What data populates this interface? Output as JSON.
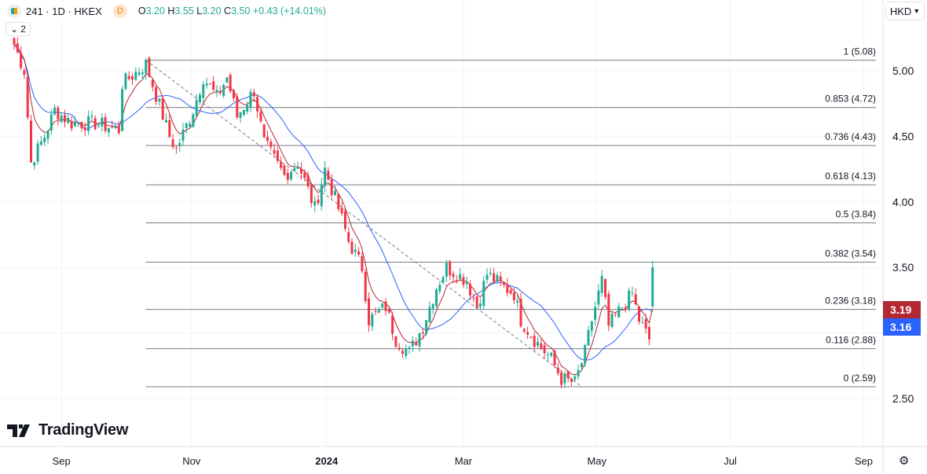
{
  "header": {
    "symbol": "241 · 1D · HKEX",
    "interval_badge": "D",
    "open": "3.20",
    "high": "3.55",
    "low": "3.20",
    "close": "3.50",
    "change": "+0.43 (+14.01%)",
    "o_label": "O",
    "h_label": "H",
    "l_label": "L",
    "c_label": "C",
    "collapsed_count": "2"
  },
  "currency": "HKD",
  "brand": "TradingView",
  "colors": {
    "up": "#22ab94",
    "down": "#f23645",
    "ma_fast": "#b22833",
    "ma_slow": "#2962ff",
    "fib": "#787b86",
    "grid": "#f0f3fa"
  },
  "chart_data": {
    "type": "candlestick",
    "title": "241 · 1D · HKEX",
    "ylim": [
      2.15,
      5.45
    ],
    "yticks": [
      "5.00",
      "4.50",
      "4.00",
      "3.50",
      "2.50"
    ],
    "ytick_values": [
      5.0,
      4.5,
      4.0,
      3.5,
      2.5
    ],
    "xticks": [
      {
        "label": "Sep",
        "idx": 14,
        "bold": false
      },
      {
        "label": "Nov",
        "idx": 52.5,
        "bold": false
      },
      {
        "label": "2024",
        "idx": 92.5,
        "bold": true
      },
      {
        "label": "Mar",
        "idx": 133,
        "bold": false
      },
      {
        "label": "May",
        "idx": 172.5,
        "bold": false
      },
      {
        "label": "Jul",
        "idx": 212,
        "bold": false
      },
      {
        "label": "Sep",
        "idx": 251.5,
        "bold": false
      }
    ],
    "x_range": [
      -0.5,
      257.5
    ],
    "close_keypoints": [
      [
        0,
        5.2
      ],
      [
        3,
        5.0
      ],
      [
        5,
        4.3
      ],
      [
        9,
        4.5
      ],
      [
        12,
        4.7
      ],
      [
        17,
        4.6
      ],
      [
        24,
        4.6
      ],
      [
        31,
        4.55
      ],
      [
        32,
        4.9
      ],
      [
        39,
        5.05
      ],
      [
        46,
        4.5
      ],
      [
        48,
        4.4
      ],
      [
        53,
        4.7
      ],
      [
        56,
        4.95
      ],
      [
        60,
        4.8
      ],
      [
        63,
        4.95
      ],
      [
        66,
        4.65
      ],
      [
        71,
        4.85
      ],
      [
        74,
        4.45
      ],
      [
        80,
        4.2
      ],
      [
        84,
        4.3
      ],
      [
        89,
        3.95
      ],
      [
        92,
        4.25
      ],
      [
        96,
        3.95
      ],
      [
        99,
        3.7
      ],
      [
        103,
        3.5
      ],
      [
        105,
        3.1
      ],
      [
        110,
        3.2
      ],
      [
        113,
        2.95
      ],
      [
        117,
        2.85
      ],
      [
        121,
        3.05
      ],
      [
        125,
        3.35
      ],
      [
        128,
        3.5
      ],
      [
        131,
        3.45
      ],
      [
        134,
        3.4
      ],
      [
        137,
        3.2
      ],
      [
        140,
        3.45
      ],
      [
        145,
        3.35
      ],
      [
        148,
        3.3
      ],
      [
        150,
        3.1
      ],
      [
        154,
        2.95
      ],
      [
        159,
        2.8
      ],
      [
        162,
        2.65
      ],
      [
        166,
        2.62
      ],
      [
        169,
        2.85
      ],
      [
        171,
        3.1
      ],
      [
        174,
        3.4
      ],
      [
        176,
        3.05
      ],
      [
        180,
        3.2
      ],
      [
        183,
        3.3
      ],
      [
        185,
        3.1
      ],
      [
        188,
        2.95
      ]
    ],
    "last_candle": {
      "open": 3.2,
      "high": 3.55,
      "low": 3.2,
      "close": 3.5
    },
    "ma_fast_last": "3.19",
    "ma_slow_last": "3.16",
    "fib_levels": [
      {
        "ratio": "1",
        "price": 5.08,
        "label": "1 (5.08)"
      },
      {
        "ratio": "0.853",
        "price": 4.72,
        "label": "0.853 (4.72)"
      },
      {
        "ratio": "0.736",
        "price": 4.43,
        "label": "0.736 (4.43)"
      },
      {
        "ratio": "0.618",
        "price": 4.13,
        "label": "0.618 (4.13)"
      },
      {
        "ratio": "0.5",
        "price": 3.84,
        "label": "0.5 (3.84)"
      },
      {
        "ratio": "0.382",
        "price": 3.54,
        "label": "0.382 (3.54)"
      },
      {
        "ratio": "0.236",
        "price": 3.18,
        "label": "0.236 (3.18)"
      },
      {
        "ratio": "0.116",
        "price": 2.88,
        "label": "0.116 (2.88)"
      },
      {
        "ratio": "0",
        "price": 2.59,
        "label": "0 (2.59)"
      }
    ],
    "fib_start_idx": 39,
    "trend_line": {
      "from": [
        39,
        5.08
      ],
      "to": [
        168,
        2.59
      ]
    }
  }
}
